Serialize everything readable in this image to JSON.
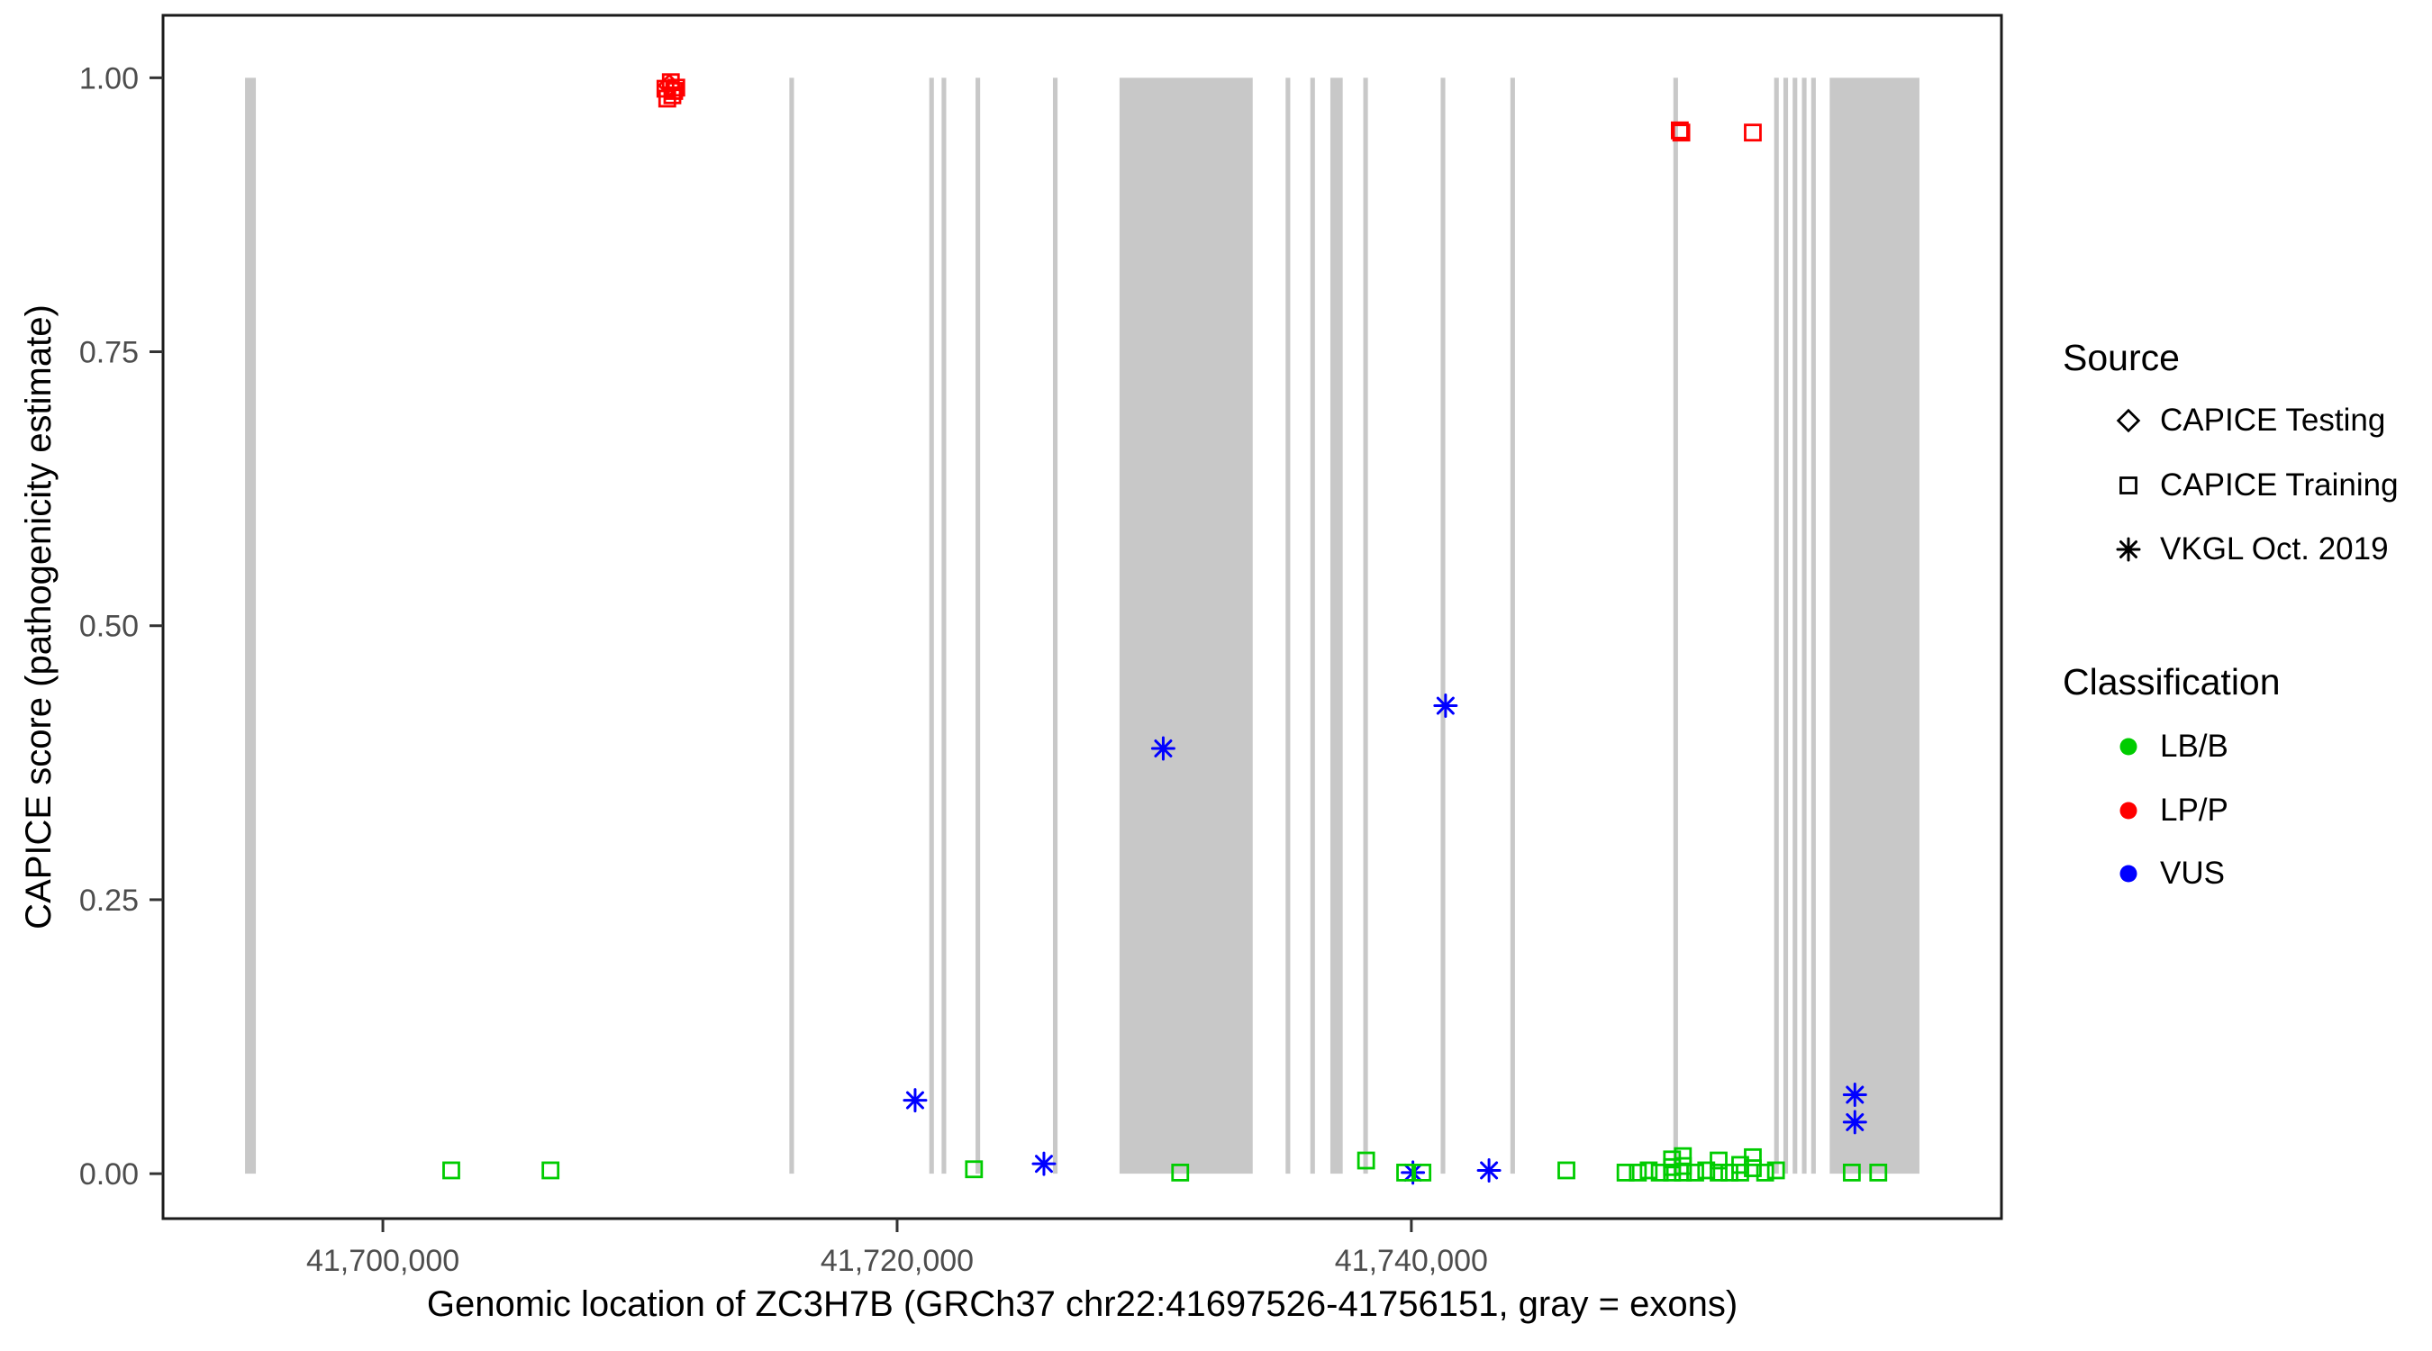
{
  "chart_data": {
    "type": "scatter",
    "title": "",
    "xlabel": "Genomic location of ZC3H7B (GRCh37 chr22:41697526-41756151, gray = exons)",
    "ylabel": "CAPICE score (pathogenicity estimate)",
    "xlim": [
      41691450,
      41762950
    ],
    "ylim": [
      -0.041,
      1.057
    ],
    "grid": false,
    "panel_border_color": "#1a1a1a",
    "tick_label_color": "#4d4d4d",
    "exon_color": "#c8c8c8",
    "x_ticks": [
      {
        "value": 41700000,
        "label": "41,700,000"
      },
      {
        "value": 41720000,
        "label": "41,720,000"
      },
      {
        "value": 41740000,
        "label": "41,740,000"
      }
    ],
    "y_ticks": [
      {
        "value": 0,
        "label": "0.00"
      },
      {
        "value": 0.25,
        "label": "0.25"
      },
      {
        "value": 0.5,
        "label": "0.50"
      },
      {
        "value": 0.75,
        "label": "0.75"
      },
      {
        "value": 1,
        "label": "1.00"
      }
    ],
    "exons": [
      [
        41694640,
        41695060
      ],
      [
        41715810,
        41715990
      ],
      [
        41721250,
        41721430
      ],
      [
        41721730,
        41721910
      ],
      [
        41723050,
        41723230
      ],
      [
        41726060,
        41726240
      ],
      [
        41728650,
        41733830
      ],
      [
        41735110,
        41735290
      ],
      [
        41736070,
        41736250
      ],
      [
        41736850,
        41737330
      ],
      [
        41738130,
        41738310
      ],
      [
        41741140,
        41741320
      ],
      [
        41743850,
        41744030
      ],
      [
        41750190,
        41750370
      ],
      [
        41754110,
        41754290
      ],
      [
        41754470,
        41754650
      ],
      [
        41754830,
        41755010
      ],
      [
        41755190,
        41755370
      ],
      [
        41755550,
        41755730
      ],
      [
        41756270,
        41759760
      ]
    ],
    "series": [
      {
        "name": "LP/P - CAPICE Training",
        "classification": "LP/P",
        "source": "CAPICE Training",
        "shape": "square",
        "color": "#ff0000",
        "points": [
          [
            41710990,
            0.99
          ],
          [
            41711200,
            0.996
          ],
          [
            41711260,
            0.984
          ],
          [
            41711410,
            0.991
          ],
          [
            41711060,
            0.981
          ],
          [
            41711330,
            0.988
          ],
          [
            41750440,
            0.952
          ],
          [
            41750500,
            0.95
          ],
          [
            41753280,
            0.95
          ]
        ]
      },
      {
        "name": "LP/P - CAPICE Testing",
        "classification": "LP/P",
        "source": "CAPICE Testing",
        "shape": "diamond",
        "color": "#ff0000",
        "points": [
          [
            41711140,
            0.993
          ]
        ]
      },
      {
        "name": "VUS - VKGL Oct. 2019",
        "classification": "VUS",
        "source": "VKGL Oct. 2019",
        "shape": "asterisk",
        "color": "#0000ff",
        "points": [
          [
            41720700,
            0.067
          ],
          [
            41725710,
            0.009
          ],
          [
            41730350,
            0.388
          ],
          [
            41740060,
            0.001
          ],
          [
            41741330,
            0.427
          ],
          [
            41743020,
            0.003
          ],
          [
            41757250,
            0.072
          ],
          [
            41757250,
            0.047
          ]
        ]
      },
      {
        "name": "LB/B - CAPICE Training",
        "classification": "LB/B",
        "source": "CAPICE Training",
        "shape": "square",
        "color": "#00cc00",
        "points": [
          [
            41702660,
            0.003
          ],
          [
            41706520,
            0.003
          ],
          [
            41722990,
            0.004
          ],
          [
            41731010,
            0.001
          ],
          [
            41738240,
            0.012
          ],
          [
            41739760,
            0.001
          ],
          [
            41740430,
            0.001
          ],
          [
            41746030,
            0.003
          ],
          [
            41748330,
            0.001
          ],
          [
            41748810,
            0.001
          ],
          [
            41749230,
            0.003
          ],
          [
            41749660,
            0.001
          ],
          [
            41750140,
            0.013
          ],
          [
            41750140,
            0.006
          ],
          [
            41750140,
            0.001
          ],
          [
            41750560,
            0.016
          ],
          [
            41750560,
            0.007
          ],
          [
            41750560,
            0.001
          ],
          [
            41751040,
            0.001
          ],
          [
            41751470,
            0.003
          ],
          [
            41751950,
            0.012
          ],
          [
            41751950,
            0.001
          ],
          [
            41752370,
            0.001
          ],
          [
            41752790,
            0.008
          ],
          [
            41752790,
            0.001
          ],
          [
            41753280,
            0.015
          ],
          [
            41753280,
            0.005
          ],
          [
            41753760,
            0.001
          ],
          [
            41754180,
            0.003
          ],
          [
            41757130,
            0.001
          ],
          [
            41758160,
            0.001
          ]
        ]
      }
    ]
  },
  "legend": {
    "source": {
      "title": "Source",
      "items": [
        {
          "label": "CAPICE Testing",
          "shape": "diamond"
        },
        {
          "label": "CAPICE Training",
          "shape": "square"
        },
        {
          "label": "VKGL Oct. 2019",
          "shape": "asterisk"
        }
      ]
    },
    "classification": {
      "title": "Classification",
      "items": [
        {
          "label": "LB/B",
          "color": "#00cc00"
        },
        {
          "label": "LP/P",
          "color": "#ff0000"
        },
        {
          "label": "VUS",
          "color": "#0000ff"
        }
      ]
    }
  }
}
